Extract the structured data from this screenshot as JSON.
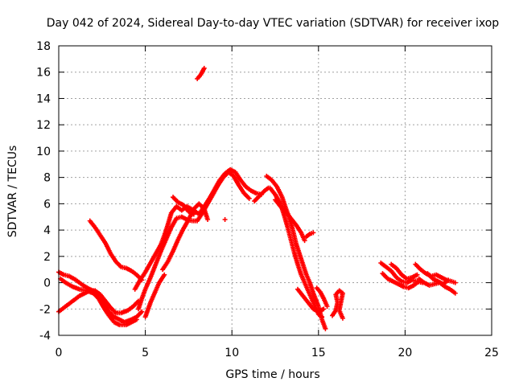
{
  "chart_data": {
    "type": "scatter",
    "title": "Day 042 of 2024, Sidereal Day-to-day VTEC variation (SDTVAR) for receiver ixop",
    "xlabel": "GPS time / hours",
    "ylabel": "SDTVAR / TECUs",
    "xlim": [
      0,
      25
    ],
    "ylim": [
      -4,
      18
    ],
    "xticks": [
      0,
      5,
      10,
      15,
      20,
      25
    ],
    "yticks": [
      -4,
      -2,
      0,
      2,
      4,
      6,
      8,
      10,
      12,
      14,
      16,
      18
    ],
    "grid": true,
    "marker": "+",
    "series": [
      {
        "name": "SDTVAR",
        "color": "#ff0000",
        "segments": [
          [
            [
              0.0,
              0.8
            ],
            [
              0.3,
              0.6
            ],
            [
              0.6,
              0.5
            ],
            [
              1.0,
              0.2
            ],
            [
              1.4,
              -0.2
            ],
            [
              1.8,
              -0.5
            ],
            [
              2.1,
              -0.7
            ],
            [
              2.4,
              -1.0
            ],
            [
              2.6,
              -1.6
            ],
            [
              2.9,
              -2.2
            ],
            [
              3.2,
              -2.6
            ],
            [
              3.5,
              -2.8
            ],
            [
              3.8,
              -3.0
            ],
            [
              4.2,
              -2.8
            ],
            [
              4.5,
              -2.6
            ],
            [
              4.8,
              -2.2
            ]
          ],
          [
            [
              0.0,
              -2.2
            ],
            [
              0.3,
              -1.9
            ],
            [
              0.6,
              -1.6
            ],
            [
              0.9,
              -1.3
            ],
            [
              1.2,
              -1.0
            ],
            [
              1.5,
              -0.8
            ],
            [
              1.8,
              -0.6
            ],
            [
              2.1,
              -0.6
            ],
            [
              2.4,
              -0.9
            ],
            [
              2.7,
              -1.4
            ],
            [
              3.0,
              -1.9
            ],
            [
              3.3,
              -2.3
            ],
            [
              3.6,
              -2.3
            ],
            [
              4.0,
              -2.1
            ],
            [
              4.3,
              -1.8
            ],
            [
              4.6,
              -1.4
            ]
          ],
          [
            [
              0.1,
              0.3
            ],
            [
              0.4,
              0.0
            ],
            [
              0.8,
              -0.3
            ],
            [
              1.2,
              -0.5
            ],
            [
              1.6,
              -0.6
            ],
            [
              2.0,
              -0.8
            ],
            [
              2.3,
              -1.2
            ],
            [
              2.6,
              -1.9
            ],
            [
              2.9,
              -2.5
            ],
            [
              3.2,
              -3.0
            ],
            [
              3.5,
              -3.2
            ],
            [
              3.9,
              -3.2
            ],
            [
              4.2,
              -3.0
            ],
            [
              4.5,
              -2.8
            ]
          ],
          [
            [
              1.8,
              4.7
            ],
            [
              2.1,
              4.2
            ],
            [
              2.4,
              3.6
            ],
            [
              2.7,
              3.0
            ],
            [
              3.0,
              2.2
            ],
            [
              3.3,
              1.6
            ],
            [
              3.6,
              1.2
            ],
            [
              3.9,
              1.1
            ],
            [
              4.2,
              0.9
            ],
            [
              4.5,
              0.6
            ],
            [
              4.8,
              0.2
            ]
          ],
          [
            [
              4.4,
              -0.5
            ],
            [
              4.7,
              0.2
            ],
            [
              5.0,
              0.8
            ],
            [
              5.3,
              1.5
            ],
            [
              5.6,
              2.2
            ],
            [
              5.9,
              2.9
            ],
            [
              6.1,
              3.6
            ],
            [
              6.3,
              4.4
            ],
            [
              6.5,
              5.3
            ],
            [
              6.8,
              5.8
            ],
            [
              7.1,
              5.5
            ],
            [
              7.4,
              5.8
            ],
            [
              7.8,
              5.5
            ],
            [
              8.1,
              5.2
            ],
            [
              8.4,
              5.8
            ],
            [
              8.7,
              6.4
            ],
            [
              9.0,
              7.1
            ],
            [
              9.3,
              7.8
            ],
            [
              9.6,
              8.3
            ],
            [
              9.9,
              8.6
            ],
            [
              10.2,
              8.4
            ],
            [
              10.5,
              7.8
            ],
            [
              10.8,
              7.3
            ],
            [
              11.1,
              7.0
            ],
            [
              11.4,
              6.8
            ],
            [
              11.7,
              6.7
            ]
          ],
          [
            [
              4.6,
              -2.0
            ],
            [
              4.8,
              -1.2
            ],
            [
              5.0,
              -0.5
            ],
            [
              5.3,
              0.4
            ],
            [
              5.6,
              1.4
            ],
            [
              5.9,
              2.4
            ],
            [
              6.2,
              3.3
            ],
            [
              6.5,
              4.2
            ],
            [
              6.8,
              4.9
            ],
            [
              7.1,
              5.0
            ],
            [
              7.4,
              4.8
            ],
            [
              7.7,
              4.7
            ],
            [
              8.0,
              4.7
            ],
            [
              8.3,
              5.3
            ],
            [
              8.6,
              6.0
            ],
            [
              8.9,
              6.7
            ],
            [
              9.2,
              7.4
            ],
            [
              9.5,
              8.0
            ],
            [
              9.8,
              8.4
            ],
            [
              10.1,
              8.1
            ],
            [
              10.4,
              7.4
            ],
            [
              10.7,
              6.8
            ],
            [
              11.0,
              6.4
            ]
          ],
          [
            [
              6.0,
              1.0
            ],
            [
              6.3,
              1.6
            ],
            [
              6.6,
              2.4
            ],
            [
              6.9,
              3.3
            ],
            [
              7.2,
              4.1
            ],
            [
              7.5,
              4.8
            ],
            [
              7.8,
              5.6
            ],
            [
              8.1,
              6.0
            ],
            [
              8.4,
              5.6
            ],
            [
              8.6,
              4.8
            ]
          ],
          [
            [
              5.0,
              -2.6
            ],
            [
              5.3,
              -1.5
            ],
            [
              5.6,
              -0.6
            ],
            [
              5.8,
              0.0
            ],
            [
              6.1,
              0.6
            ]
          ],
          [
            [
              6.6,
              6.5
            ],
            [
              6.9,
              6.1
            ],
            [
              7.2,
              5.9
            ],
            [
              7.5,
              5.4
            ],
            [
              7.8,
              5.2
            ]
          ],
          [
            [
              8.0,
              15.5
            ],
            [
              8.2,
              15.8
            ],
            [
              8.4,
              16.3
            ]
          ],
          [
            [
              9.6,
              4.8
            ]
          ],
          [
            [
              11.3,
              6.2
            ],
            [
              11.6,
              6.6
            ],
            [
              11.9,
              7.0
            ],
            [
              12.1,
              7.2
            ]
          ],
          [
            [
              12.0,
              8.1
            ],
            [
              12.3,
              7.8
            ],
            [
              12.6,
              7.3
            ],
            [
              12.9,
              6.5
            ],
            [
              13.1,
              5.7
            ],
            [
              13.3,
              5.0
            ],
            [
              13.5,
              4.1
            ],
            [
              13.7,
              3.0
            ],
            [
              13.9,
              2.2
            ],
            [
              14.1,
              1.4
            ],
            [
              14.3,
              0.6
            ],
            [
              14.5,
              0.0
            ],
            [
              14.7,
              -0.8
            ],
            [
              15.0,
              -1.8
            ],
            [
              15.2,
              -2.8
            ],
            [
              15.4,
              -3.5
            ]
          ],
          [
            [
              12.2,
              7.2
            ],
            [
              12.5,
              6.7
            ],
            [
              12.8,
              6.0
            ],
            [
              13.0,
              5.2
            ],
            [
              13.2,
              4.3
            ],
            [
              13.4,
              3.3
            ],
            [
              13.6,
              2.3
            ],
            [
              13.8,
              1.4
            ],
            [
              14.0,
              0.6
            ],
            [
              14.2,
              0.0
            ],
            [
              14.4,
              -0.6
            ],
            [
              14.6,
              -1.2
            ],
            [
              14.8,
              -1.8
            ],
            [
              15.0,
              -2.4
            ],
            [
              15.2,
              -2.6
            ]
          ],
          [
            [
              12.5,
              6.3
            ],
            [
              12.8,
              5.8
            ],
            [
              13.1,
              5.4
            ],
            [
              13.4,
              4.9
            ],
            [
              13.7,
              4.4
            ],
            [
              14.0,
              3.8
            ],
            [
              14.2,
              3.2
            ]
          ],
          [
            [
              13.8,
              -0.5
            ],
            [
              14.1,
              -1.0
            ],
            [
              14.4,
              -1.5
            ],
            [
              14.7,
              -2.0
            ],
            [
              15.0,
              -2.2
            ],
            [
              15.3,
              -2.0
            ]
          ],
          [
            [
              14.3,
              3.5
            ],
            [
              14.5,
              3.7
            ],
            [
              14.7,
              3.8
            ]
          ],
          [
            [
              14.9,
              -0.4
            ],
            [
              15.1,
              -0.7
            ],
            [
              15.3,
              -1.2
            ],
            [
              15.5,
              -1.8
            ]
          ],
          [
            [
              15.8,
              -2.5
            ],
            [
              16.0,
              -2.1
            ],
            [
              16.1,
              -1.5
            ],
            [
              16.0,
              -0.9
            ],
            [
              16.2,
              -0.6
            ],
            [
              16.4,
              -0.8
            ],
            [
              16.2,
              -2.1
            ],
            [
              16.4,
              -2.7
            ]
          ],
          [
            [
              18.6,
              1.5
            ],
            [
              18.9,
              1.2
            ],
            [
              19.2,
              0.9
            ],
            [
              19.5,
              0.4
            ],
            [
              19.8,
              0.1
            ],
            [
              20.1,
              0.0
            ],
            [
              20.4,
              0.2
            ],
            [
              20.7,
              0.1
            ],
            [
              21.0,
              0.0
            ]
          ],
          [
            [
              18.7,
              0.7
            ],
            [
              19.0,
              0.3
            ],
            [
              19.3,
              0.1
            ],
            [
              19.6,
              -0.1
            ],
            [
              19.9,
              -0.3
            ],
            [
              20.2,
              -0.4
            ],
            [
              20.5,
              -0.2
            ],
            [
              20.8,
              0.1
            ]
          ],
          [
            [
              19.2,
              1.4
            ],
            [
              19.5,
              1.1
            ],
            [
              19.8,
              0.6
            ],
            [
              20.1,
              0.3
            ],
            [
              20.4,
              0.4
            ],
            [
              20.7,
              0.6
            ]
          ],
          [
            [
              20.6,
              1.4
            ],
            [
              20.9,
              1.0
            ],
            [
              21.2,
              0.7
            ],
            [
              21.5,
              0.5
            ],
            [
              21.8,
              0.6
            ],
            [
              22.1,
              0.4
            ],
            [
              22.4,
              0.2
            ],
            [
              22.7,
              0.1
            ],
            [
              22.9,
              0.0
            ]
          ],
          [
            [
              20.8,
              0.3
            ],
            [
              21.1,
              0.0
            ],
            [
              21.4,
              -0.2
            ],
            [
              21.7,
              -0.1
            ],
            [
              22.0,
              0.0
            ],
            [
              22.3,
              -0.3
            ],
            [
              22.6,
              -0.5
            ],
            [
              22.9,
              -0.8
            ]
          ],
          [
            [
              21.3,
              0.7
            ],
            [
              21.6,
              0.3
            ],
            [
              21.9,
              0.1
            ],
            [
              22.2,
              -0.1
            ],
            [
              22.5,
              0.2
            ]
          ]
        ]
      }
    ]
  }
}
